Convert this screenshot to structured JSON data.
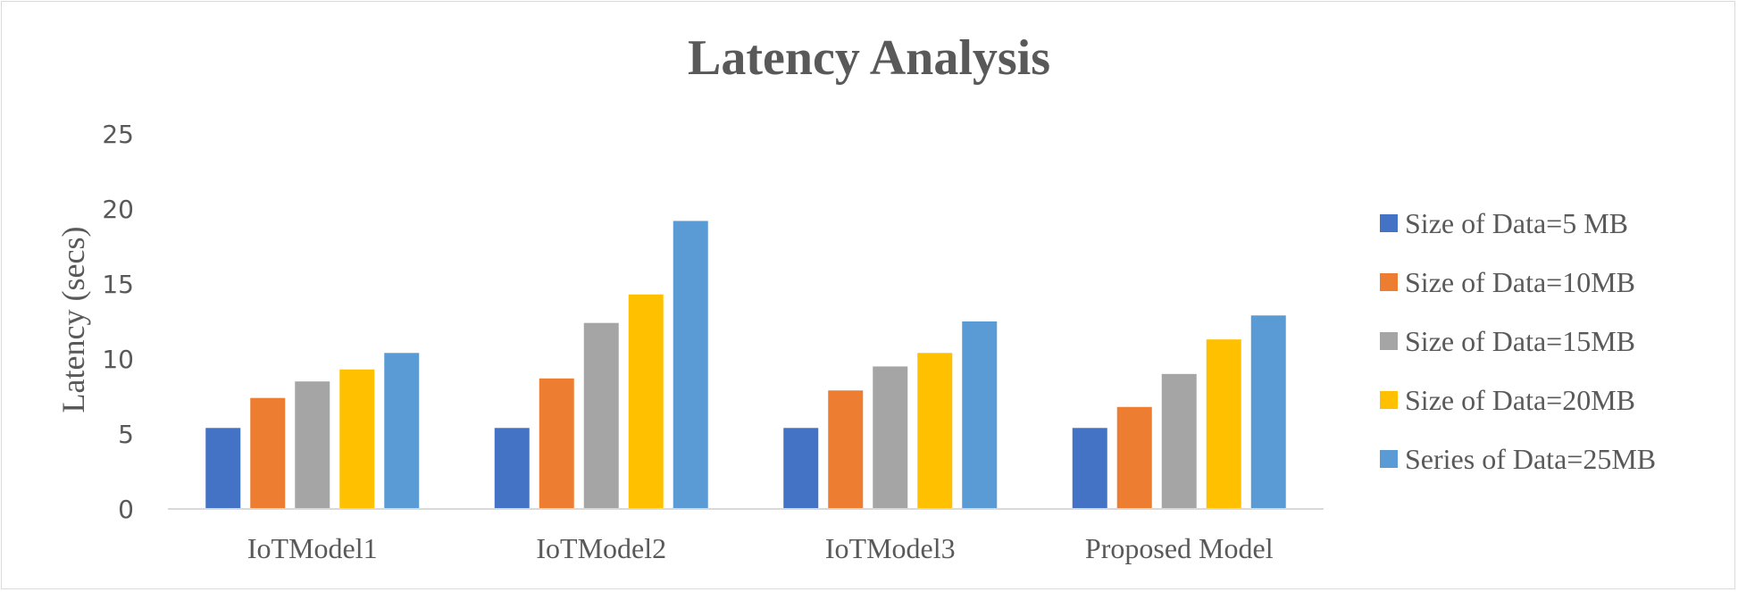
{
  "chart_data": {
    "type": "bar",
    "title": "Latency Analysis",
    "xlabel": "",
    "ylabel": "Latency (secs)",
    "ylim": [
      0,
      25
    ],
    "yticks": [
      0,
      5,
      10,
      15,
      20,
      25
    ],
    "grid": false,
    "legend_position": "right",
    "categories": [
      "IoTModel1",
      "IoTModel2",
      "IoTModel3",
      "Proposed Model"
    ],
    "series": [
      {
        "name": "Size of Data=5 MB",
        "color": "#4472c4",
        "values": [
          5.4,
          5.4,
          5.4,
          5.4
        ]
      },
      {
        "name": "Size of Data=10MB",
        "color": "#ed7d31",
        "values": [
          7.4,
          8.7,
          7.9,
          6.8
        ]
      },
      {
        "name": "Size of Data=15MB",
        "color": "#a5a5a5",
        "values": [
          8.5,
          12.4,
          9.5,
          9.0
        ]
      },
      {
        "name": "Size of Data=20MB",
        "color": "#ffc000",
        "values": [
          9.3,
          14.3,
          10.4,
          11.3
        ]
      },
      {
        "name": "Series of Data=25MB",
        "color": "#5b9bd5",
        "values": [
          10.4,
          19.2,
          12.5,
          12.9
        ]
      }
    ]
  }
}
